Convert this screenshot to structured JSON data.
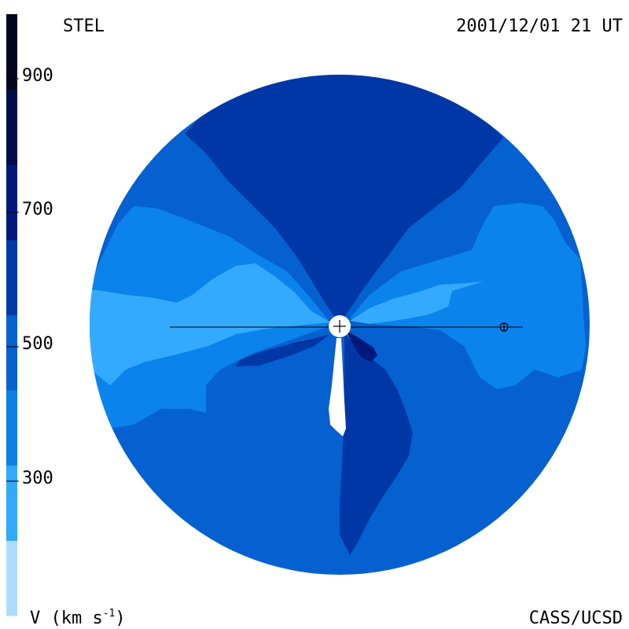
{
  "header": {
    "source": "STEL",
    "timestamp": "2001/12/01 21 UT"
  },
  "footer": {
    "credit": "CASS/UCSD"
  },
  "colorbar": {
    "title": "V (km s",
    "title_exponent": "-1",
    "title_close": ")",
    "ticks": [
      "900",
      "700",
      "500",
      "300"
    ],
    "colors": [
      "#aedcff",
      "#32a8ff",
      "#0a82ea",
      "#0560d0",
      "#003aa8",
      "#00187a",
      "#000f4a",
      "#00061e"
    ]
  },
  "map": {
    "field_colors": {
      "dark_navy": "#00187a",
      "deep_blue": "#0037a6",
      "medium_blue": "#0560d0",
      "light_blue": "#0a84ec",
      "pale_blue": "#34aaff",
      "sun": "#ffffff"
    },
    "markers": {
      "sun": "sun-icon",
      "earth": "earth-icon"
    }
  }
}
